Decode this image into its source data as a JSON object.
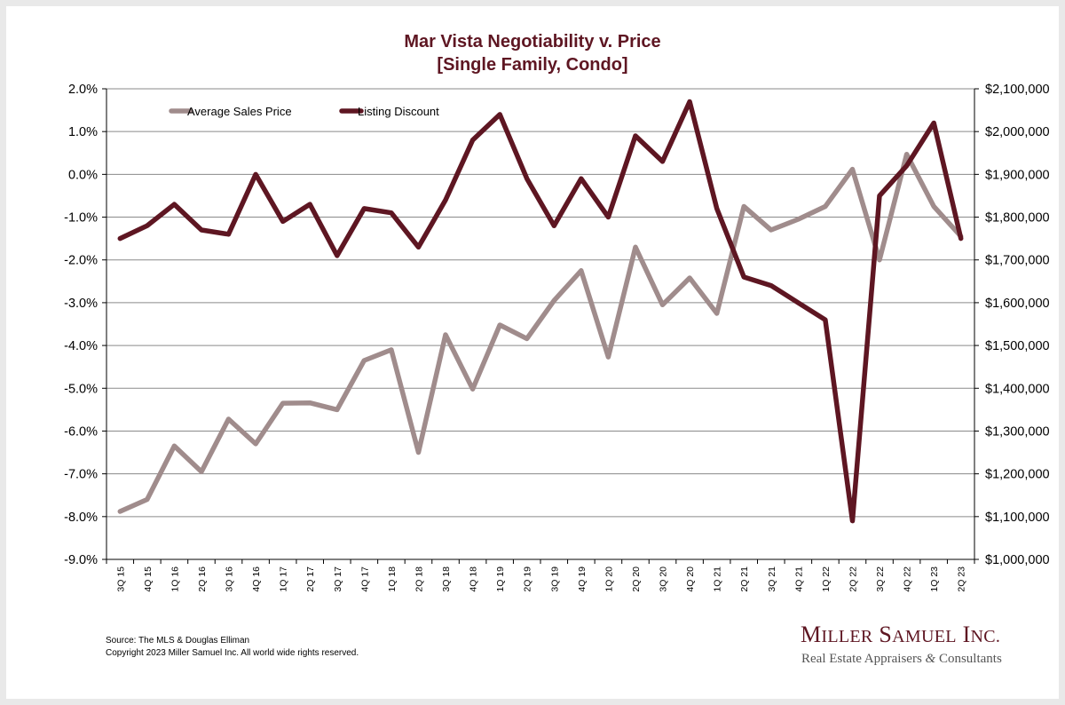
{
  "chart_data": {
    "type": "line",
    "title": "Mar Vista Negotiability v. Price",
    "subtitle": "[Single Family, Condo]",
    "categories": [
      "3Q 15",
      "4Q 15",
      "1Q 16",
      "2Q 16",
      "3Q 16",
      "4Q 16",
      "1Q 17",
      "2Q 17",
      "3Q 17",
      "4Q 17",
      "1Q 18",
      "2Q 18",
      "3Q 18",
      "4Q 18",
      "1Q 19",
      "2Q 19",
      "3Q 19",
      "4Q 19",
      "1Q 20",
      "2Q 20",
      "3Q 20",
      "4Q 20",
      "1Q 21",
      "2Q 21",
      "3Q 21",
      "4Q 21",
      "1Q 22",
      "2Q 22",
      "3Q 22",
      "4Q 22",
      "1Q 23",
      "2Q 23"
    ],
    "y_left": {
      "ylim": [
        -9.0,
        2.0
      ],
      "ticks": [
        2.0,
        1.0,
        0.0,
        -1.0,
        -2.0,
        -3.0,
        -4.0,
        -5.0,
        -6.0,
        -7.0,
        -8.0,
        -9.0
      ],
      "tick_labels": [
        "2.0%",
        "1.0%",
        "0.0%",
        "-1.0%",
        "-2.0%",
        "-3.0%",
        "-4.0%",
        "-5.0%",
        "-6.0%",
        "-7.0%",
        "-8.0%",
        "-9.0%"
      ]
    },
    "y_right": {
      "ylim": [
        1000000,
        2100000
      ],
      "ticks": [
        2100000,
        2000000,
        1900000,
        1800000,
        1700000,
        1600000,
        1500000,
        1400000,
        1300000,
        1200000,
        1100000,
        1000000
      ],
      "tick_labels": [
        "$2,100,000",
        "$2,000,000",
        "$1,900,000",
        "$1,800,000",
        "$1,700,000",
        "$1,600,000",
        "$1,500,000",
        "$1,400,000",
        "$1,300,000",
        "$1,200,000",
        "$1,100,000",
        "$1,000,000"
      ]
    },
    "series": [
      {
        "name": "Average Sales Price",
        "axis": "right",
        "color": "#a08c8c",
        "values": [
          1112000,
          1140000,
          1265000,
          1205000,
          1328000,
          1270000,
          1365000,
          1366000,
          1350000,
          1465000,
          1490000,
          1250000,
          1525000,
          1398000,
          1548000,
          1516000,
          1605000,
          1675000,
          1473000,
          1730000,
          1595000,
          1658000,
          1575000,
          1825000,
          1770000,
          1795000,
          1825000,
          1912000,
          1700000,
          1947000,
          1825000,
          1755000
        ]
      },
      {
        "name": "Listing Discount",
        "axis": "left",
        "color": "#5e1622",
        "values": [
          -1.5,
          -1.2,
          -0.7,
          -1.3,
          -1.4,
          0.0,
          -1.1,
          -0.7,
          -1.9,
          -0.8,
          -0.9,
          -1.7,
          -0.6,
          0.8,
          1.4,
          -0.1,
          -1.2,
          -0.1,
          -1.0,
          0.9,
          0.3,
          1.7,
          -0.8,
          -2.4,
          -2.6,
          -3.0,
          -3.4,
          -8.1,
          -0.5,
          0.2,
          1.2,
          -1.5
        ]
      }
    ],
    "grid": true,
    "legend_position": "top-left"
  },
  "footer": {
    "source": "Source: The MLS & Douglas Elliman",
    "copyright": "Copyright 2023 Miller Samuel Inc.  All world wide rights reserved."
  },
  "logo": {
    "name": "Miller Samuel Inc.",
    "tagline": "Real Estate Appraisers & Consultants"
  }
}
